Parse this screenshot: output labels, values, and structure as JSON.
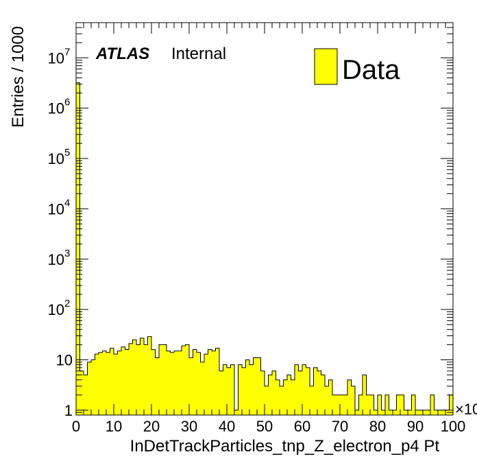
{
  "chart_data": {
    "type": "bar",
    "style": "histogram",
    "title": "",
    "xlabel": "InDetTrackParticles_tnp_Z_electron_p4 Pt",
    "ylabel": "Entries / 1000",
    "x_multiplier": "×10",
    "xlim": [
      0,
      100
    ],
    "ylim": [
      0.8,
      50000000
    ],
    "yscale": "log",
    "grid": false,
    "legend_position": "top-right",
    "experiment_label": "ATLAS",
    "experiment_sublabel": "Internal",
    "x_ticks": [
      0,
      10,
      20,
      30,
      40,
      50,
      60,
      70,
      80,
      90,
      100
    ],
    "y_ticks": [
      {
        "value": 1,
        "base": "1",
        "exp": ""
      },
      {
        "value": 10,
        "base": "10",
        "exp": ""
      },
      {
        "value": 100,
        "base": "10",
        "exp": "2"
      },
      {
        "value": 1000,
        "base": "10",
        "exp": "3"
      },
      {
        "value": 10000,
        "base": "10",
        "exp": "4"
      },
      {
        "value": 100000,
        "base": "10",
        "exp": "5"
      },
      {
        "value": 1000000,
        "base": "10",
        "exp": "6"
      },
      {
        "value": 10000000,
        "base": "10",
        "exp": "7"
      }
    ],
    "bin_width": 1,
    "series": [
      {
        "name": "Data",
        "color": "#ffff00",
        "edge_color": "#000000",
        "x_start": 0,
        "values": [
          3200000,
          6,
          5,
          9,
          10,
          13,
          14,
          15,
          14,
          17,
          13,
          15,
          18,
          16,
          21,
          25,
          20,
          27,
          20,
          29,
          16,
          11,
          20,
          20,
          15,
          14,
          15,
          15,
          19,
          20,
          11,
          16,
          14,
          9,
          13,
          16,
          15,
          17,
          6,
          8,
          7,
          8,
          1,
          8,
          7,
          10,
          8,
          11,
          11,
          6,
          3,
          5,
          6,
          4,
          3,
          4,
          5,
          4,
          8,
          6,
          8,
          7,
          3,
          7,
          6,
          5,
          3,
          4,
          2,
          2,
          2,
          2,
          4,
          3,
          1,
          2,
          5,
          2,
          2,
          1,
          2,
          1,
          2,
          1,
          1,
          2,
          2,
          1,
          1,
          2,
          1,
          1,
          1,
          1,
          2,
          1,
          1,
          1,
          1,
          2
        ]
      }
    ]
  }
}
